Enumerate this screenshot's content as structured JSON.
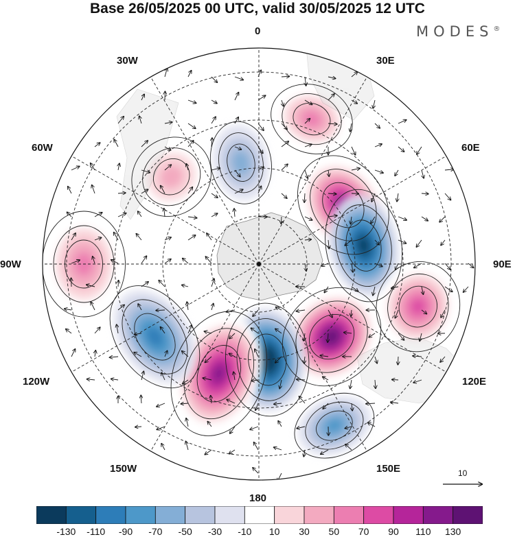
{
  "title": "Base 26/05/2025 00 UTC, valid 30/05/2025 12 UTC",
  "logo": {
    "text": "MODES",
    "mark": "®"
  },
  "longitude_labels": {
    "top": "0",
    "bottom": "180",
    "left": "90W",
    "right": "90E",
    "upper_left": "30W",
    "upper_right": "30E",
    "mid_left": "60W",
    "mid_right": "60E",
    "lower_left": "120W",
    "lower_right": "120E",
    "bottom_left": "150W",
    "bottom_right": "150E"
  },
  "reference_vector": {
    "label": "10"
  },
  "colorbar": {
    "ticks": [
      "-130",
      "-110",
      "-90",
      "-70",
      "-50",
      "-30",
      "-10",
      "10",
      "30",
      "50",
      "70",
      "90",
      "110",
      "130"
    ],
    "colors": [
      "#0b3a5c",
      "#155f8e",
      "#2d7db8",
      "#4d98c9",
      "#84aed6",
      "#b7c4df",
      "#dfe1ef",
      "#ffffff",
      "#f9d5da",
      "#f3aac0",
      "#ec7eb1",
      "#dd4ba4",
      "#b5259a",
      "#851a8c",
      "#5e1273"
    ]
  },
  "anomaly_centers": [
    {
      "sign": "positive",
      "level": 50,
      "region": "near 20E"
    },
    {
      "sign": "positive",
      "level": 110,
      "region": "near 55E"
    },
    {
      "sign": "negative",
      "level": -110,
      "region": "near 80E"
    },
    {
      "sign": "positive",
      "level": 70,
      "region": "near 105E"
    },
    {
      "sign": "positive",
      "level": 130,
      "region": "near 135E"
    },
    {
      "sign": "negative",
      "level": -50,
      "region": "near 155E"
    },
    {
      "sign": "negative",
      "level": -130,
      "region": "near 175E"
    },
    {
      "sign": "positive",
      "level": 110,
      "region": "near 160W"
    },
    {
      "sign": "negative",
      "level": -70,
      "region": "near 125W"
    },
    {
      "sign": "positive",
      "level": 50,
      "region": "near 90W"
    },
    {
      "sign": "positive",
      "level": 30,
      "region": "near 45W"
    },
    {
      "sign": "negative",
      "level": -30,
      "region": "near 10W"
    }
  ]
}
